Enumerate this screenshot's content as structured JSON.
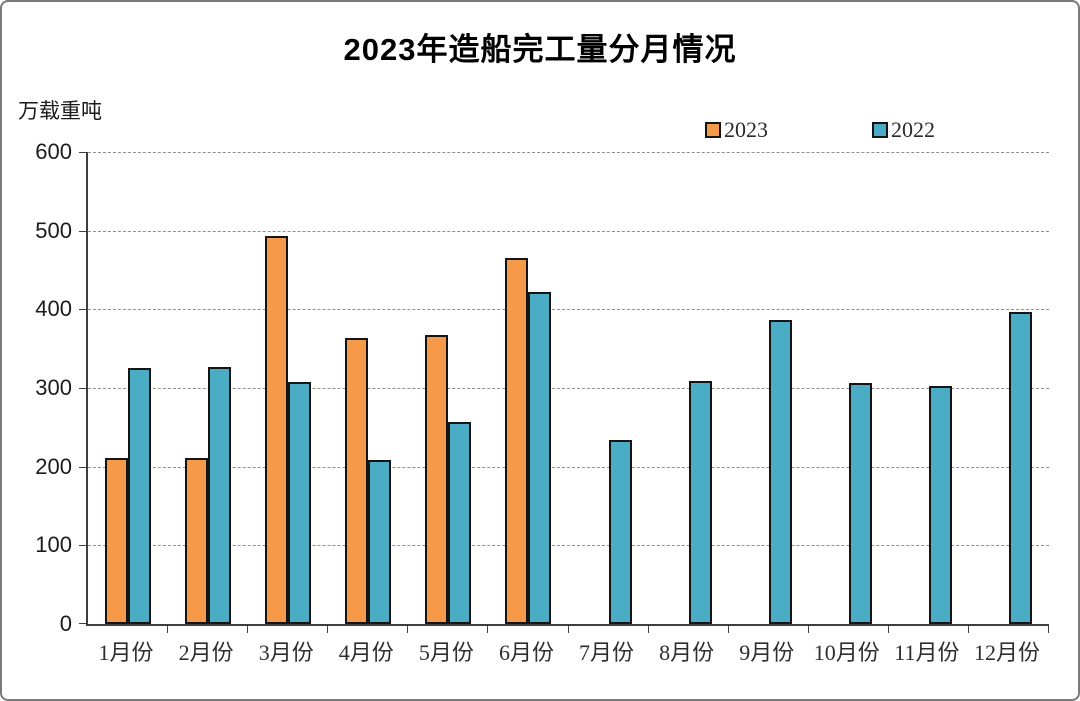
{
  "title": "2023年造船完工量分月情况",
  "ylabel": "万载重吨",
  "colors": {
    "series_2023": "#F49A48",
    "series_2022": "#4AACC5",
    "bar_border": "#141414",
    "gridline": "#8f8f8f",
    "axis": "#3f3f3f"
  },
  "chart_data": {
    "type": "bar",
    "title": "2023年造船完工量分月情况",
    "ylabel": "万载重吨",
    "xlabel": "",
    "categories": [
      "1月份",
      "2月份",
      "3月份",
      "4月份",
      "5月份",
      "6月份",
      "7月份",
      "8月份",
      "9月份",
      "10月份",
      "11月份",
      "12月份"
    ],
    "series": [
      {
        "name": "2023",
        "color": "#F49A48",
        "values": [
          211,
          211,
          493,
          363,
          368,
          465,
          null,
          null,
          null,
          null,
          null,
          null
        ]
      },
      {
        "name": "2022",
        "color": "#4AACC5",
        "values": [
          325,
          327,
          308,
          209,
          257,
          422,
          234,
          309,
          386,
          306,
          302,
          396
        ]
      }
    ],
    "ylim": [
      0,
      600
    ],
    "yticks": [
      0,
      100,
      200,
      300,
      400,
      500,
      600
    ],
    "grid": "horizontal-dashed",
    "legend_position": "top-right"
  }
}
